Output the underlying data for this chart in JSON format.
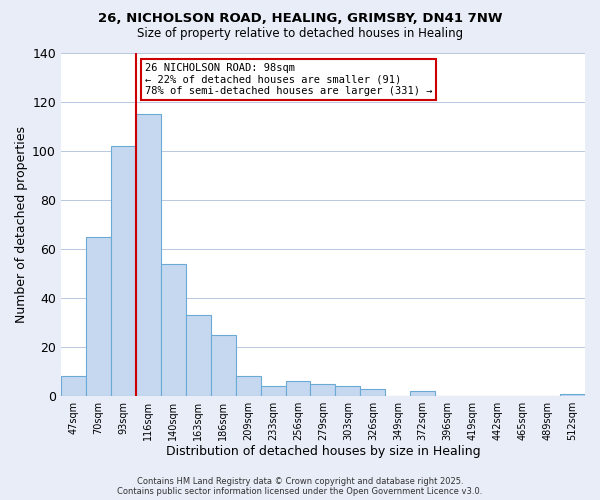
{
  "title1": "26, NICHOLSON ROAD, HEALING, GRIMSBY, DN41 7NW",
  "title2": "Size of property relative to detached houses in Healing",
  "xlabel": "Distribution of detached houses by size in Healing",
  "ylabel": "Number of detached properties",
  "bar_labels": [
    "47sqm",
    "70sqm",
    "93sqm",
    "116sqm",
    "140sqm",
    "163sqm",
    "186sqm",
    "209sqm",
    "233sqm",
    "256sqm",
    "279sqm",
    "303sqm",
    "326sqm",
    "349sqm",
    "372sqm",
    "396sqm",
    "419sqm",
    "442sqm",
    "465sqm",
    "489sqm",
    "512sqm"
  ],
  "bar_heights": [
    8,
    65,
    102,
    115,
    54,
    33,
    25,
    8,
    4,
    6,
    5,
    4,
    3,
    0,
    2,
    0,
    0,
    0,
    0,
    0,
    1
  ],
  "bar_color": "#c5d8f0",
  "bar_edge_color": "#6aaad4",
  "vline_color": "#cc0000",
  "ylim": [
    0,
    140
  ],
  "annotation_line1": "26 NICHOLSON ROAD: 98sqm",
  "annotation_line2": "← 22% of detached houses are smaller (91)",
  "annotation_line3": "78% of semi-detached houses are larger (331) →",
  "annotation_box_color": "#ffffff",
  "annotation_box_edge": "#cc0000",
  "footer1": "Contains HM Land Registry data © Crown copyright and database right 2025.",
  "footer2": "Contains public sector information licensed under the Open Government Licence v3.0.",
  "background_color": "#e8edf8",
  "plot_background": "#ffffff",
  "grid_color": "#b8c8e0"
}
